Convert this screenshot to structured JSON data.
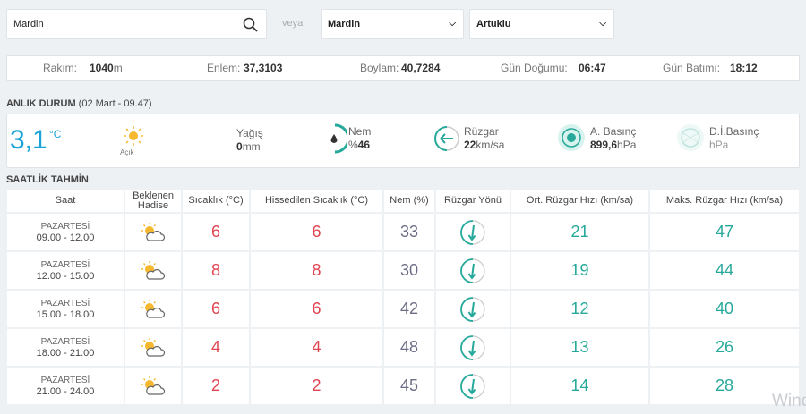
{
  "search": {
    "query": "Mardin",
    "or": "veya",
    "province": "Mardin",
    "district": "Artuklu"
  },
  "location": [
    {
      "label": "Rakım:",
      "value": "1040",
      "unit": "m"
    },
    {
      "label": "Enlem:",
      "value": "37,3103"
    },
    {
      "label": "Boylam:",
      "value": "40,7284"
    },
    {
      "label": "Gün Doğumu:",
      "value": "06:47"
    },
    {
      "label": "Gün Batımı:",
      "value": "18:12"
    }
  ],
  "current": {
    "title": "ANLIK DURUM",
    "date": "(02 Mart - 09.47)",
    "temperature": "3,1",
    "temperature_unit": "°C",
    "condition": "Açık",
    "precipitation": {
      "label": "Yağış",
      "value": "0",
      "unit": "mm"
    },
    "humidity": {
      "label": "Nem",
      "unit": "%",
      "value": "46"
    },
    "wind": {
      "label": "Rüzgar",
      "value": "22",
      "unit": "km/sa"
    },
    "pressure": {
      "label": "A. Basınç",
      "value": "899,6",
      "unit": "hPa"
    },
    "sea_pressure": {
      "label": "D.İ.Basınç",
      "unit": "hPa"
    }
  },
  "forecast": {
    "title": "SAATLİK TAHMİN",
    "headers": [
      "Saat",
      "Beklenen Hadise",
      "Sıcaklık (°C)",
      "Hissedilen Sıcaklık (°C)",
      "Nem (%)",
      "Rüzgar Yönü",
      "Ort. Rüzgar Hızı (km/sa)",
      "Maks. Rüzgar Hızı (km/sa)"
    ],
    "rows": [
      {
        "day": "PAZARTESİ",
        "time": "09.00 - 12.00",
        "temperature": "6",
        "feels_like": "6",
        "humidity": "33",
        "wind_avg": "21",
        "wind_max": "47"
      },
      {
        "day": "PAZARTESİ",
        "time": "12.00 - 15.00",
        "temperature": "8",
        "feels_like": "8",
        "humidity": "30",
        "wind_avg": "19",
        "wind_max": "44"
      },
      {
        "day": "PAZARTESİ",
        "time": "15.00 - 18.00",
        "temperature": "6",
        "feels_like": "6",
        "humidity": "42",
        "wind_avg": "12",
        "wind_max": "40"
      },
      {
        "day": "PAZARTESİ",
        "time": "18.00 - 21.00",
        "temperature": "4",
        "feels_like": "4",
        "humidity": "48",
        "wind_avg": "13",
        "wind_max": "26"
      },
      {
        "day": "PAZARTESİ",
        "time": "21.00 - 24.00",
        "temperature": "2",
        "feels_like": "2",
        "humidity": "45",
        "wind_avg": "14",
        "wind_max": "28"
      }
    ]
  },
  "watermark": "Wind"
}
